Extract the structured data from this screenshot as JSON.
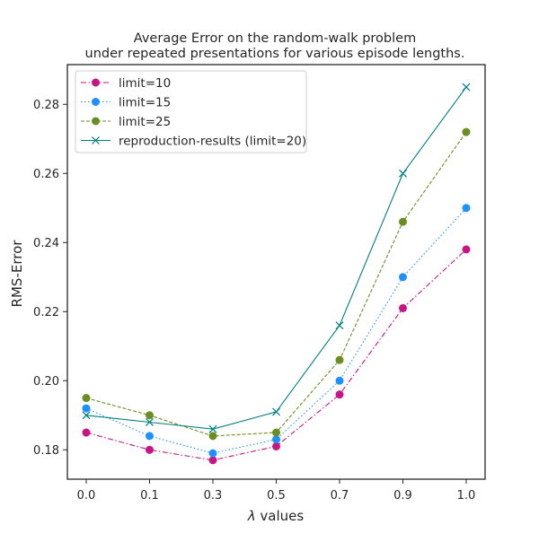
{
  "chart_data": {
    "type": "line",
    "title_lines": [
      "Average Error on the random-walk problem",
      "under repeated presentations for various episode lengths."
    ],
    "xlabel": "λ values",
    "ylabel": "RMS-Error",
    "categories": [
      "0.0",
      "0.1",
      "0.3",
      "0.5",
      "0.7",
      "0.9",
      "1.0"
    ],
    "yticks": [
      "0.18",
      "0.20",
      "0.22",
      "0.24",
      "0.26",
      "0.28"
    ],
    "ylim": [
      0.1715,
      0.2915
    ],
    "grid": false,
    "legend_position": "upper-left",
    "series": [
      {
        "name": "limit=10",
        "color": "#c71585",
        "line_style": "dashdot",
        "marker": "circle",
        "values": [
          0.185,
          0.18,
          0.177,
          0.181,
          0.196,
          0.221,
          0.238
        ]
      },
      {
        "name": "limit=15",
        "color": "#1e90ff",
        "line_style": "dotted",
        "marker": "circle",
        "values": [
          0.192,
          0.184,
          0.179,
          0.183,
          0.2,
          0.23,
          0.25
        ]
      },
      {
        "name": "limit=25",
        "color": "#6b8e23",
        "line_style": "dashed",
        "marker": "circle",
        "values": [
          0.195,
          0.19,
          0.184,
          0.185,
          0.206,
          0.246,
          0.272
        ]
      },
      {
        "name": "reproduction-results (limit=20)",
        "color": "#008080",
        "line_style": "solid",
        "marker": "x",
        "values": [
          0.19,
          0.188,
          0.186,
          0.191,
          0.216,
          0.26,
          0.285
        ]
      }
    ]
  }
}
